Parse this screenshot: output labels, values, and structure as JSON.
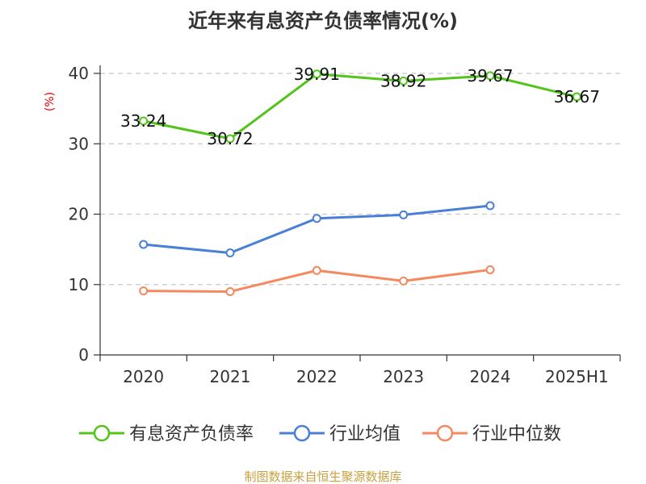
{
  "chart_data": {
    "type": "line",
    "title": "近年来有息资产负债率情况(%)",
    "ylabel": "(%)",
    "categories": [
      "2020",
      "2021",
      "2022",
      "2023",
      "2024",
      "2025H1"
    ],
    "ylim": [
      0,
      40
    ],
    "yticks": [
      0,
      10,
      20,
      30,
      40
    ],
    "grid": true,
    "legend_position": "bottom",
    "series": [
      {
        "name": "有息资产负债率",
        "color": "#52c41a",
        "values": [
          33.24,
          30.72,
          39.91,
          38.92,
          39.67,
          36.67
        ],
        "labels": [
          "33.24",
          "30.72",
          "39.91",
          "38.92",
          "39.67",
          "36.67"
        ]
      },
      {
        "name": "行业均值",
        "color": "#4a7fd8",
        "values": [
          15.7,
          14.5,
          19.4,
          19.9,
          21.2,
          null
        ]
      },
      {
        "name": "行业中位数",
        "color": "#f4895f",
        "values": [
          9.1,
          9.0,
          12.0,
          10.5,
          12.1,
          null
        ]
      }
    ]
  },
  "footer": {
    "source": "制图数据来自恒生聚源数据库"
  }
}
